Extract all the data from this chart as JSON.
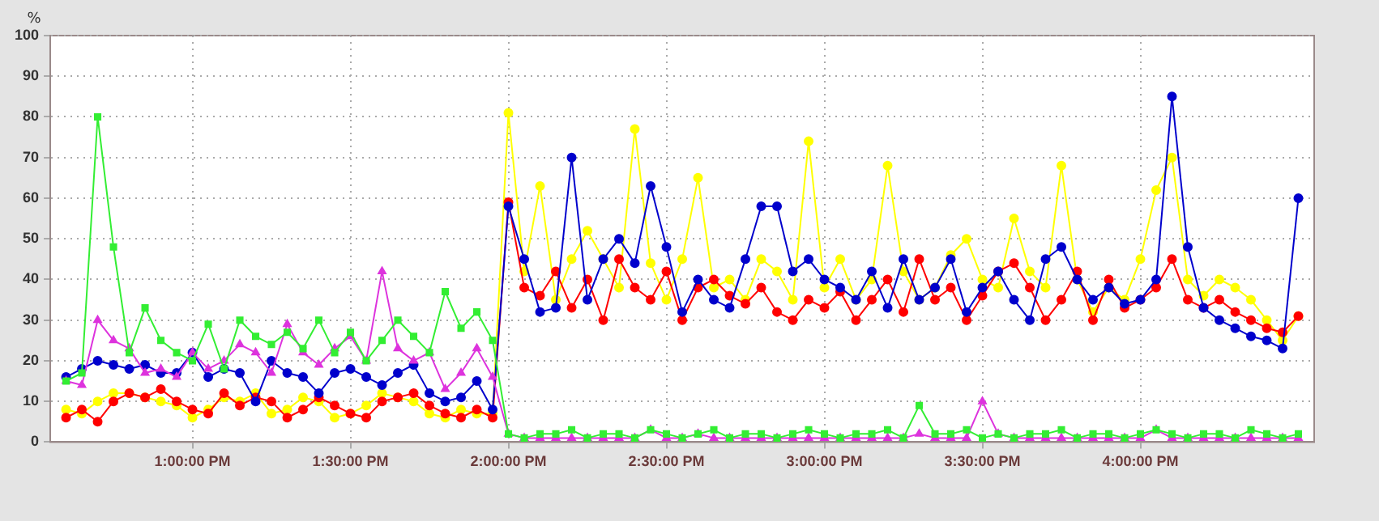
{
  "chart_data": {
    "type": "line",
    "ylabel": "%",
    "ylim": [
      0,
      100
    ],
    "yticks": [
      0,
      10,
      20,
      30,
      40,
      50,
      60,
      70,
      80,
      90,
      100
    ],
    "xlim": [
      12.55,
      16.55
    ],
    "xticks": [
      {
        "value": 13,
        "label": "1:00:00 PM"
      },
      {
        "value": 13.5,
        "label": "1:30:00 PM"
      },
      {
        "value": 14,
        "label": "2:00:00 PM"
      },
      {
        "value": 14.5,
        "label": "2:30:00 PM"
      },
      {
        "value": 15,
        "label": "3:00:00 PM"
      },
      {
        "value": 15.5,
        "label": "3:30:00 PM"
      },
      {
        "value": 16,
        "label": "4:00:00 PM"
      }
    ],
    "grid": true,
    "legend": false,
    "x": [
      12.6,
      12.65,
      12.7,
      12.75,
      12.8,
      12.85,
      12.9,
      12.95,
      13,
      13.05,
      13.1,
      13.15,
      13.2,
      13.25,
      13.3,
      13.35,
      13.4,
      13.45,
      13.5,
      13.55,
      13.6,
      13.65,
      13.7,
      13.75,
      13.8,
      13.85,
      13.9,
      13.95,
      14,
      14.05,
      14.1,
      14.15,
      14.2,
      14.25,
      14.3,
      14.35,
      14.4,
      14.45,
      14.5,
      14.55,
      14.6,
      14.65,
      14.7,
      14.75,
      14.8,
      14.85,
      14.9,
      14.95,
      15,
      15.05,
      15.1,
      15.15,
      15.2,
      15.25,
      15.3,
      15.35,
      15.4,
      15.45,
      15.5,
      15.55,
      15.6,
      15.65,
      15.7,
      15.75,
      15.8,
      15.85,
      15.9,
      15.95,
      16,
      16.05,
      16.1,
      16.15,
      16.2,
      16.25,
      16.3,
      16.35,
      16.4,
      16.45,
      16.5
    ],
    "series": [
      {
        "color": "#33ee33",
        "marker": "square",
        "values": [
          15,
          17,
          80,
          48,
          22,
          33,
          25,
          22,
          20,
          29,
          18,
          30,
          26,
          24,
          27,
          23,
          30,
          22,
          27,
          20,
          25,
          30,
          26,
          22,
          37,
          28,
          32,
          25,
          2,
          1,
          2,
          2,
          3,
          1,
          2,
          2,
          1,
          3,
          2,
          1,
          2,
          3,
          1,
          2,
          2,
          1,
          2,
          3,
          2,
          1,
          2,
          2,
          3,
          1,
          9,
          2,
          2,
          3,
          1,
          2,
          1,
          2,
          2,
          3,
          1,
          2,
          2,
          1,
          2,
          3,
          2,
          1,
          2,
          2,
          1,
          3,
          2,
          1,
          2
        ]
      },
      {
        "color": "#dd33dd",
        "marker": "triangle",
        "values": [
          15,
          14,
          30,
          25,
          23,
          17,
          18,
          16,
          22,
          18,
          20,
          24,
          22,
          17,
          29,
          22,
          19,
          23,
          26,
          20,
          42,
          23,
          20,
          22,
          13,
          17,
          23,
          16,
          2,
          1,
          1,
          1,
          1,
          1,
          1,
          1,
          1,
          3,
          1,
          1,
          2,
          1,
          1,
          1,
          1,
          1,
          1,
          1,
          1,
          1,
          1,
          1,
          1,
          1,
          2,
          1,
          1,
          1,
          10,
          2,
          1,
          1,
          1,
          1,
          1,
          1,
          1,
          1,
          1,
          3,
          1,
          1,
          1,
          1,
          1,
          1,
          1,
          1,
          1
        ]
      },
      {
        "color": "#0000cc",
        "marker": "circle",
        "values": [
          16,
          18,
          20,
          19,
          18,
          19,
          17,
          17,
          22,
          16,
          18,
          17,
          10,
          20,
          17,
          16,
          12,
          17,
          18,
          16,
          14,
          17,
          19,
          12,
          10,
          11,
          15,
          8,
          58,
          45,
          32,
          33,
          70,
          35,
          45,
          50,
          44,
          63,
          48,
          32,
          40,
          35,
          33,
          45,
          58,
          58,
          42,
          45,
          40,
          38,
          35,
          42,
          33,
          45,
          35,
          38,
          45,
          32,
          38,
          42,
          35,
          30,
          45,
          48,
          40,
          35,
          38,
          34,
          35,
          40,
          85,
          48,
          33,
          30,
          28,
          26,
          25,
          23,
          60
        ]
      },
      {
        "color": "#ff0000",
        "marker": "circle",
        "values": [
          6,
          8,
          5,
          10,
          12,
          11,
          13,
          10,
          8,
          7,
          12,
          9,
          11,
          10,
          6,
          8,
          11,
          9,
          7,
          6,
          10,
          11,
          12,
          9,
          7,
          6,
          8,
          6,
          59,
          38,
          36,
          42,
          33,
          40,
          30,
          45,
          38,
          35,
          42,
          30,
          38,
          40,
          36,
          34,
          38,
          32,
          30,
          35,
          33,
          37,
          30,
          35,
          40,
          32,
          45,
          35,
          38,
          30,
          36,
          42,
          44,
          38,
          30,
          35,
          42,
          30,
          40,
          33,
          35,
          38,
          45,
          35,
          33,
          35,
          32,
          30,
          28,
          27,
          31
        ]
      },
      {
        "color": "#ffff00",
        "marker": "circle",
        "values": [
          8,
          7,
          10,
          12,
          12,
          11,
          10,
          9,
          6,
          8,
          11,
          10,
          12,
          7,
          8,
          11,
          10,
          6,
          7,
          9,
          12,
          11,
          10,
          7,
          6,
          8,
          7,
          7,
          81,
          42,
          63,
          35,
          45,
          52,
          45,
          38,
          77,
          44,
          35,
          45,
          65,
          38,
          40,
          35,
          45,
          42,
          35,
          74,
          38,
          45,
          35,
          40,
          68,
          42,
          35,
          38,
          46,
          50,
          40,
          38,
          55,
          42,
          38,
          68,
          40,
          32,
          38,
          35,
          45,
          62,
          70,
          40,
          36,
          40,
          38,
          35,
          30,
          25,
          31
        ]
      }
    ]
  }
}
